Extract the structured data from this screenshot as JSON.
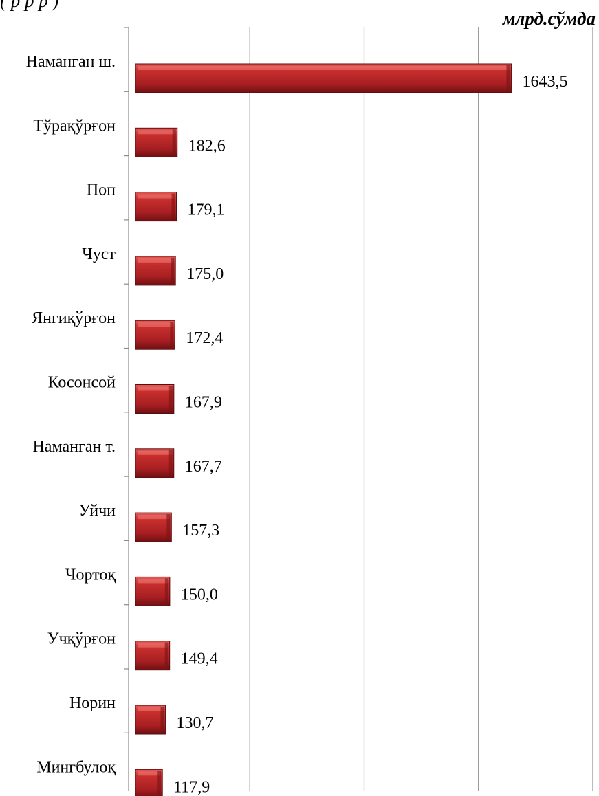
{
  "top_text_fragment": "(                                    р                  р       р )",
  "unit_label": "млрд.сўмда",
  "chart_data": {
    "type": "bar",
    "orientation": "horizontal",
    "unit": "млрд.сўмда",
    "categories": [
      "Наманган ш.",
      "Тўрақўрғон",
      "Поп",
      "Чуст",
      "Янгиқўрғон",
      "Косонсой",
      "Наманган т.",
      "Уйчи",
      "Чортоқ",
      "Учқўрғон",
      "Норин",
      "Мингбулоқ"
    ],
    "values": [
      1643.5,
      182.6,
      179.1,
      175.0,
      172.4,
      167.9,
      167.7,
      157.3,
      150.0,
      149.4,
      130.7,
      117.9
    ],
    "value_labels": [
      "1643,5",
      "182,6",
      "179,1",
      "175,0",
      "172,4",
      "167,9",
      "167,7",
      "157,3",
      "150,0",
      "149,4",
      "130,7",
      "117,9"
    ],
    "xlim": [
      0,
      2000
    ],
    "grid": true,
    "legend": false,
    "bar_color": "#b32428"
  }
}
